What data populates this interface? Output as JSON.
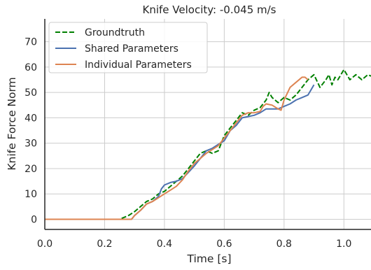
{
  "chart_data": {
    "type": "line",
    "title": "Knife Velocity: -0.045 m/s",
    "xlabel": "Time [s]",
    "ylabel": "Knife Force Norm",
    "xlim": [
      0.0,
      1.1
    ],
    "ylim": [
      -4,
      79
    ],
    "x_ticks": [
      "0.0",
      "0.2",
      "0.4",
      "0.6",
      "0.8",
      "1.0"
    ],
    "y_ticks": [
      "0",
      "10",
      "20",
      "30",
      "40",
      "50",
      "60",
      "70"
    ],
    "grid": true,
    "legend_position": "top-left",
    "series": [
      {
        "name": "Groundtruth",
        "color": "#008000",
        "dash": "dashed",
        "x": [
          0.0,
          0.25,
          0.26,
          0.28,
          0.3,
          0.32,
          0.34,
          0.36,
          0.38,
          0.4,
          0.42,
          0.44,
          0.46,
          0.48,
          0.5,
          0.52,
          0.54,
          0.56,
          0.58,
          0.6,
          0.62,
          0.64,
          0.66,
          0.68,
          0.7,
          0.72,
          0.74,
          0.75,
          0.76,
          0.78,
          0.8,
          0.82,
          0.84,
          0.86,
          0.88,
          0.9,
          0.92,
          0.94,
          0.95,
          0.96,
          0.97,
          0.98,
          1.0,
          1.02,
          1.03,
          1.04,
          1.06,
          1.08,
          1.1
        ],
        "y": [
          0,
          0,
          0.5,
          1.5,
          3,
          5,
          7,
          8,
          10,
          11,
          13,
          15,
          17,
          20,
          23,
          26,
          27,
          26,
          27,
          33,
          36,
          39,
          42,
          41,
          43,
          44,
          47,
          50,
          48,
          46,
          48,
          47,
          49,
          52,
          55,
          57,
          52,
          55,
          57,
          53,
          56,
          55,
          59,
          55,
          56,
          57,
          55,
          57,
          56
        ]
      },
      {
        "name": "Shared Parameters",
        "color": "#4c72b0",
        "dash": "solid",
        "x": [
          0.0,
          0.29,
          0.3,
          0.32,
          0.34,
          0.36,
          0.38,
          0.39,
          0.4,
          0.42,
          0.44,
          0.46,
          0.48,
          0.5,
          0.52,
          0.54,
          0.56,
          0.58,
          0.6,
          0.62,
          0.64,
          0.66,
          0.68,
          0.7,
          0.72,
          0.74,
          0.76,
          0.78,
          0.8,
          0.82,
          0.84,
          0.86,
          0.88,
          0.89,
          0.9
        ],
        "y": [
          0,
          0,
          1.5,
          3.5,
          6,
          7,
          9,
          12,
          13.5,
          14.5,
          15,
          16,
          18.5,
          21,
          24,
          27,
          28,
          29.5,
          31,
          35,
          37,
          40,
          40.5,
          41,
          42,
          43.5,
          43.5,
          43.5,
          44.5,
          45.5,
          47,
          48,
          49,
          51,
          53
        ]
      },
      {
        "name": "Individual Parameters",
        "color": "#dd8452",
        "dash": "solid",
        "x": [
          0.0,
          0.29,
          0.3,
          0.32,
          0.34,
          0.36,
          0.38,
          0.4,
          0.42,
          0.44,
          0.46,
          0.48,
          0.5,
          0.52,
          0.54,
          0.56,
          0.58,
          0.6,
          0.62,
          0.64,
          0.66,
          0.68,
          0.7,
          0.72,
          0.73,
          0.74,
          0.76,
          0.78,
          0.79,
          0.8,
          0.82,
          0.84,
          0.86,
          0.87,
          0.88
        ],
        "y": [
          0,
          0,
          1.5,
          3.5,
          6,
          7,
          8.5,
          10,
          11.5,
          13,
          15.5,
          19,
          22,
          24,
          26,
          27.5,
          29,
          32,
          35,
          38,
          41,
          42,
          42,
          42.5,
          44.5,
          45.5,
          45,
          43.5,
          43,
          47,
          52,
          54,
          56,
          56,
          55
        ]
      }
    ]
  }
}
